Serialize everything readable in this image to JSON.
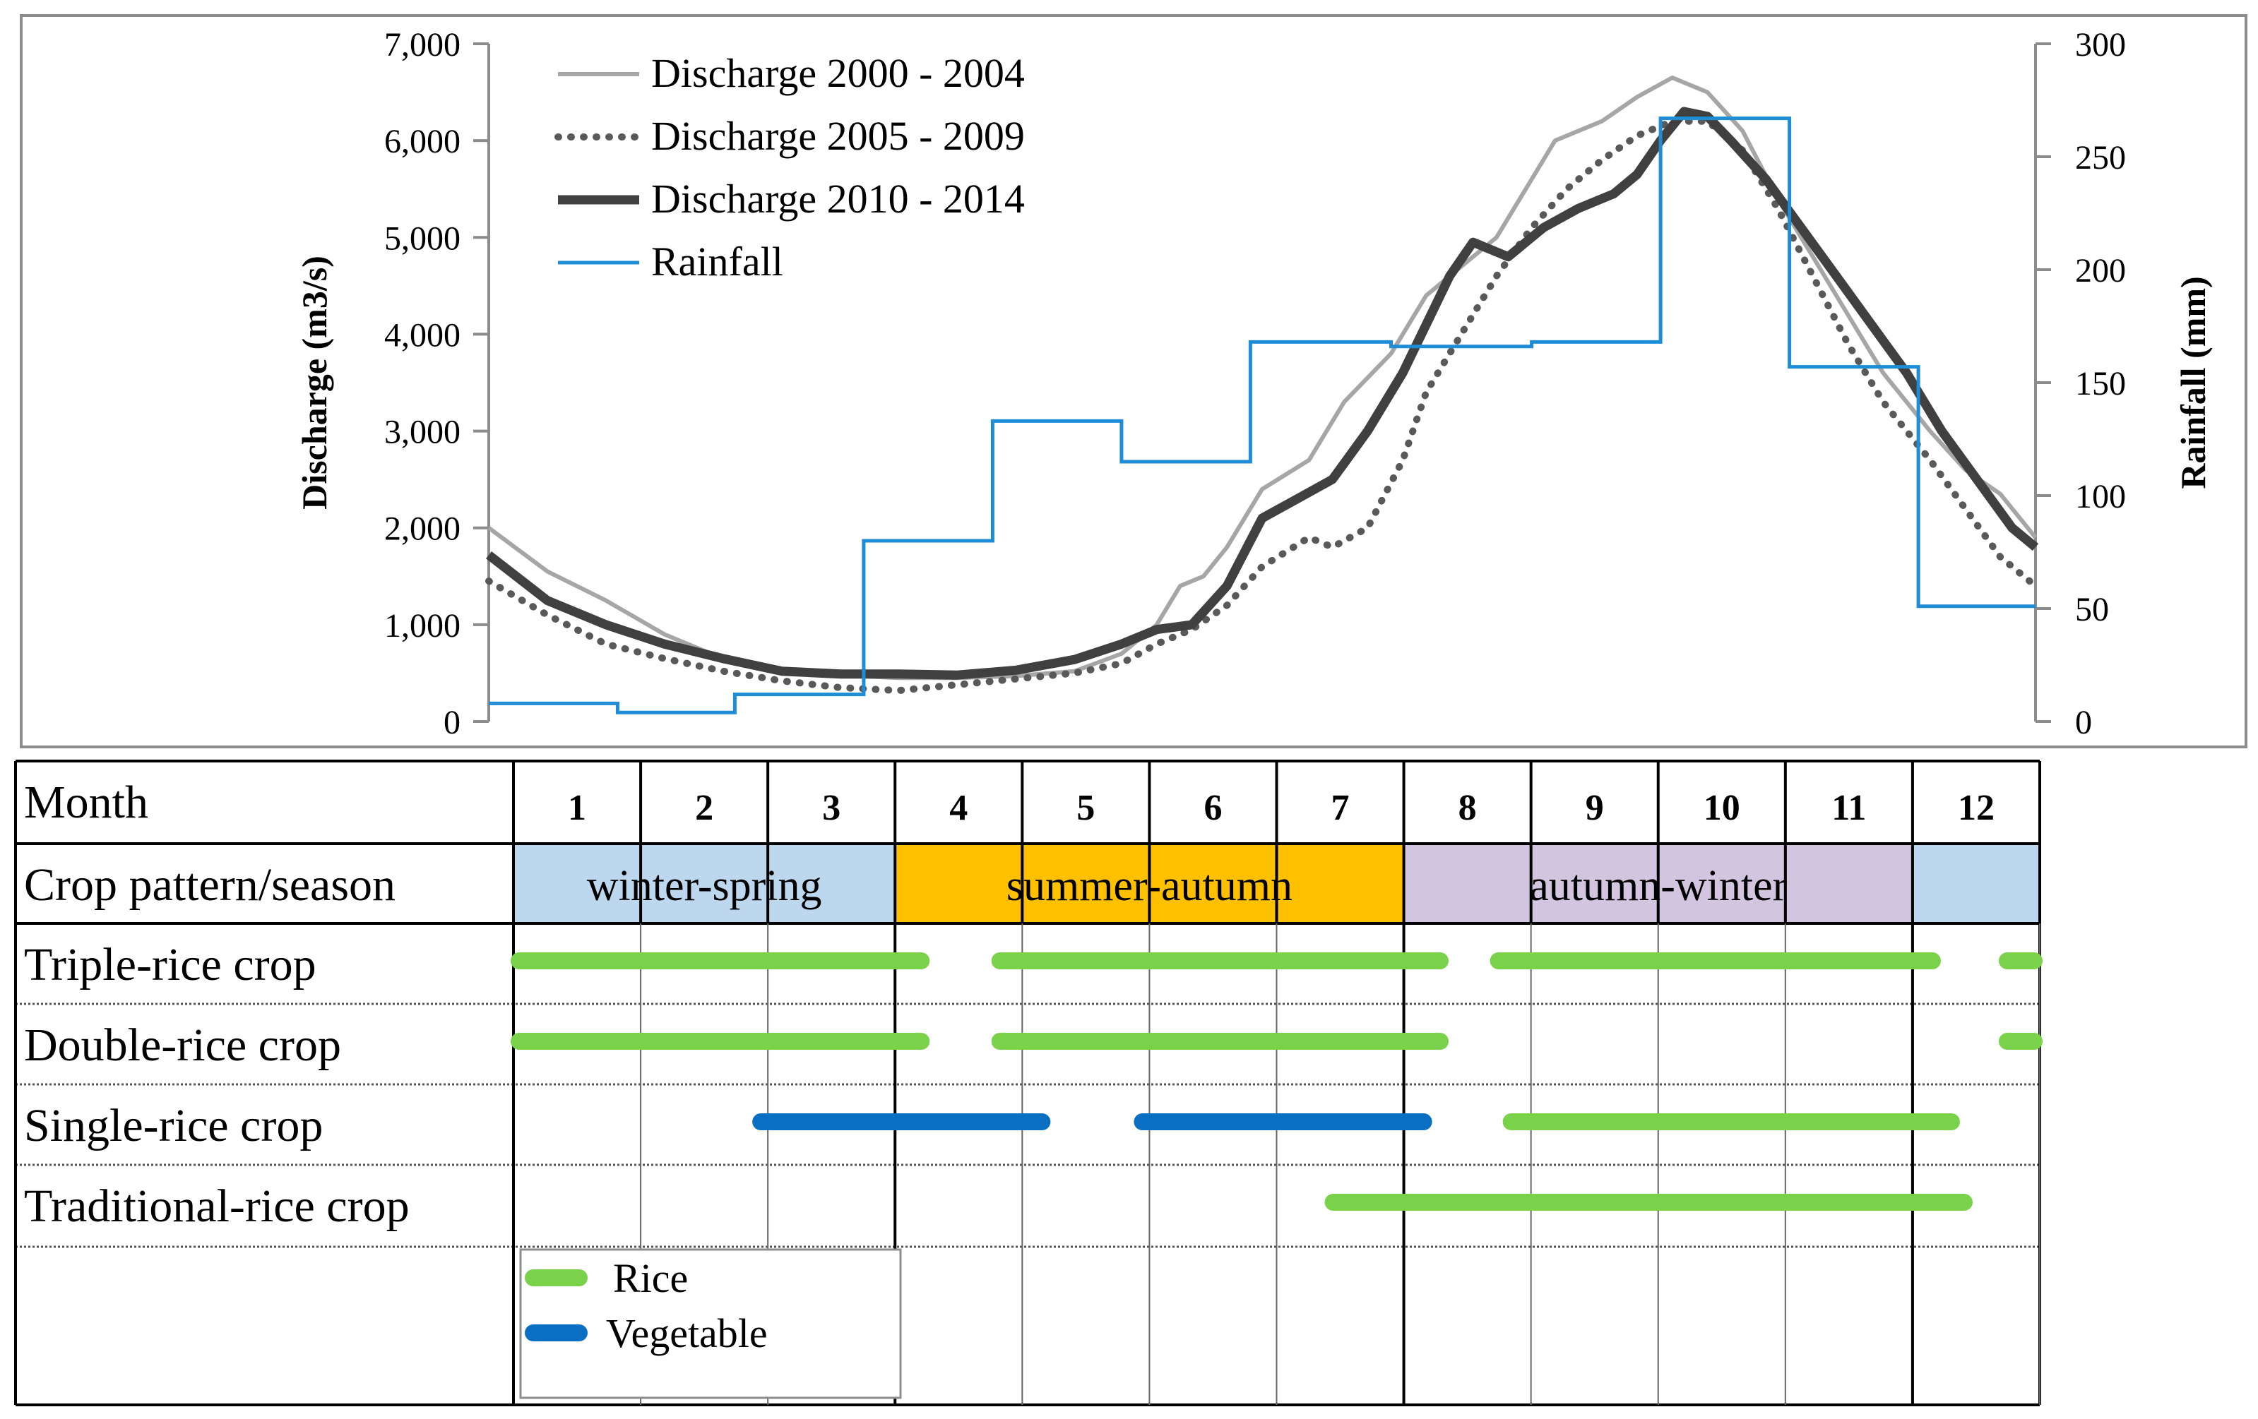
{
  "chart_data": {
    "type": "line",
    "x_unit_note": "",
    "ylabel": "Discharge (m3/s)",
    "y2label": "Rainfall (mm)",
    "ylim": [
      0,
      7000
    ],
    "y2lim": [
      0,
      300
    ],
    "yticks": [
      "0",
      "1,000",
      "2,000",
      "3,000",
      "4,000",
      "5,000",
      "6,000",
      "7,000"
    ],
    "y2ticks": [
      "0",
      "50",
      "100",
      "150",
      "200",
      "250",
      "300"
    ],
    "legend_position": "top-left",
    "series": [
      {
        "name": "Discharge 2000 - 2004",
        "color": "#a6a6a6",
        "style": "solid-thin",
        "points": [
          [
            0,
            2000
          ],
          [
            0.5,
            1550
          ],
          [
            1,
            1250
          ],
          [
            1.5,
            900
          ],
          [
            2,
            650
          ],
          [
            2.5,
            520
          ],
          [
            3,
            480
          ],
          [
            3.5,
            450
          ],
          [
            4,
            450
          ],
          [
            4.5,
            470
          ],
          [
            5,
            520
          ],
          [
            5.4,
            700
          ],
          [
            5.7,
            1000
          ],
          [
            5.9,
            1400
          ],
          [
            6.1,
            1500
          ],
          [
            6.3,
            1800
          ],
          [
            6.6,
            2400
          ],
          [
            7,
            2700
          ],
          [
            7.3,
            3300
          ],
          [
            7.7,
            3800
          ],
          [
            8,
            4400
          ],
          [
            8.3,
            4700
          ],
          [
            8.6,
            5000
          ],
          [
            8.9,
            5600
          ],
          [
            9.1,
            6000
          ],
          [
            9.5,
            6200
          ],
          [
            9.8,
            6450
          ],
          [
            10.1,
            6650
          ],
          [
            10.4,
            6500
          ],
          [
            10.7,
            6100
          ],
          [
            11,
            5400
          ],
          [
            11.3,
            4800
          ],
          [
            11.6,
            4200
          ],
          [
            11.9,
            3600
          ],
          [
            12.3,
            3000
          ],
          [
            12.6,
            2600
          ],
          [
            12.9,
            2350
          ],
          [
            13.2,
            1900
          ]
        ]
      },
      {
        "name": "Discharge 2005 - 2009",
        "color": "#595959",
        "style": "dotted",
        "points": [
          [
            0,
            1450
          ],
          [
            0.5,
            1100
          ],
          [
            1,
            800
          ],
          [
            1.5,
            650
          ],
          [
            2,
            520
          ],
          [
            2.5,
            420
          ],
          [
            3,
            350
          ],
          [
            3.5,
            320
          ],
          [
            4,
            380
          ],
          [
            4.5,
            440
          ],
          [
            5,
            500
          ],
          [
            5.4,
            600
          ],
          [
            5.7,
            800
          ],
          [
            6,
            950
          ],
          [
            6.3,
            1200
          ],
          [
            6.6,
            1600
          ],
          [
            7,
            1900
          ],
          [
            7.2,
            1800
          ],
          [
            7.5,
            2000
          ],
          [
            7.8,
            2700
          ],
          [
            8,
            3400
          ],
          [
            8.3,
            4000
          ],
          [
            8.6,
            4600
          ],
          [
            8.9,
            5100
          ],
          [
            9.2,
            5500
          ],
          [
            9.5,
            5800
          ],
          [
            9.8,
            6050
          ],
          [
            10.1,
            6200
          ],
          [
            10.4,
            6200
          ],
          [
            10.7,
            5900
          ],
          [
            11,
            5300
          ],
          [
            11.3,
            4600
          ],
          [
            11.6,
            3900
          ],
          [
            11.9,
            3300
          ],
          [
            12.3,
            2700
          ],
          [
            12.6,
            2200
          ],
          [
            12.9,
            1700
          ],
          [
            13.2,
            1400
          ]
        ]
      },
      {
        "name": "Discharge 2010 - 2014",
        "color": "#404040",
        "style": "solid-thick",
        "points": [
          [
            0,
            1720
          ],
          [
            0.5,
            1250
          ],
          [
            1,
            1000
          ],
          [
            1.5,
            800
          ],
          [
            2,
            650
          ],
          [
            2.5,
            520
          ],
          [
            3,
            490
          ],
          [
            3.5,
            490
          ],
          [
            4,
            480
          ],
          [
            4.5,
            530
          ],
          [
            5,
            640
          ],
          [
            5.4,
            800
          ],
          [
            5.7,
            950
          ],
          [
            6,
            1000
          ],
          [
            6.3,
            1400
          ],
          [
            6.6,
            2100
          ],
          [
            6.9,
            2300
          ],
          [
            7.2,
            2500
          ],
          [
            7.5,
            3000
          ],
          [
            7.8,
            3600
          ],
          [
            8,
            4100
          ],
          [
            8.2,
            4600
          ],
          [
            8.4,
            4950
          ],
          [
            8.7,
            4800
          ],
          [
            9,
            5100
          ],
          [
            9.3,
            5300
          ],
          [
            9.6,
            5450
          ],
          [
            9.8,
            5650
          ],
          [
            10,
            6000
          ],
          [
            10.2,
            6300
          ],
          [
            10.4,
            6250
          ],
          [
            10.6,
            6000
          ],
          [
            10.9,
            5600
          ],
          [
            11.2,
            5100
          ],
          [
            11.5,
            4600
          ],
          [
            11.8,
            4100
          ],
          [
            12.1,
            3600
          ],
          [
            12.4,
            3000
          ],
          [
            12.7,
            2500
          ],
          [
            13,
            2000
          ],
          [
            13.2,
            1800
          ]
        ]
      },
      {
        "name": "Rainfall",
        "color": "#1f8dd6",
        "style": "step",
        "axis": "y2",
        "steps": [
          [
            0,
            1.1,
            8
          ],
          [
            1.1,
            2.1,
            4
          ],
          [
            2.1,
            3.2,
            12
          ],
          [
            3.2,
            4.3,
            80
          ],
          [
            4.3,
            5.4,
            133
          ],
          [
            5.4,
            6.5,
            115
          ],
          [
            6.5,
            7.7,
            168
          ],
          [
            7.7,
            8.9,
            166
          ],
          [
            8.9,
            10,
            168
          ],
          [
            10,
            11.1,
            267
          ],
          [
            11.1,
            12.2,
            157
          ],
          [
            12.2,
            13.2,
            51
          ]
        ]
      }
    ]
  },
  "calendar": {
    "row_labels": [
      "Month",
      "Crop pattern/season",
      "Triple-rice crop",
      "Double-rice crop",
      "Single-rice crop",
      "Traditional-rice crop",
      ""
    ],
    "months": [
      "1",
      "2",
      "3",
      "4",
      "5",
      "6",
      "7",
      "8",
      "9",
      "10",
      "11",
      "12"
    ],
    "seasons": [
      {
        "label": "winter-spring",
        "start": 0,
        "end": 3,
        "color": "#bdd7ee"
      },
      {
        "label": "summer-autumn",
        "start": 3,
        "end": 7,
        "color": "#ffc000"
      },
      {
        "label": "autumn-winter",
        "start": 7,
        "end": 11,
        "color": "#d2c5e0"
      },
      {
        "label": "",
        "start": 11,
        "end": 12,
        "color": "#bdd7ee"
      }
    ],
    "crops": [
      {
        "row": 2,
        "type": "rice",
        "start": 0.0,
        "end": 3.25
      },
      {
        "row": 2,
        "type": "rice",
        "start": 3.78,
        "end": 7.33
      },
      {
        "row": 2,
        "type": "rice",
        "start": 7.7,
        "end": 11.2
      },
      {
        "row": 2,
        "type": "rice",
        "start": 11.7,
        "end": 12.0
      },
      {
        "row": 3,
        "type": "rice",
        "start": 0.0,
        "end": 3.25
      },
      {
        "row": 3,
        "type": "rice",
        "start": 3.78,
        "end": 7.33
      },
      {
        "row": 3,
        "type": "rice",
        "start": 11.7,
        "end": 12.0
      },
      {
        "row": 4,
        "type": "vegetable",
        "start": 1.9,
        "end": 4.2
      },
      {
        "row": 4,
        "type": "vegetable",
        "start": 4.9,
        "end": 7.2
      },
      {
        "row": 4,
        "type": "rice",
        "start": 7.8,
        "end": 11.35
      },
      {
        "row": 5,
        "type": "rice",
        "start": 6.4,
        "end": 11.45
      }
    ],
    "legend": [
      {
        "label": "Rice",
        "color": "#7ad14a"
      },
      {
        "label": "Vegetable",
        "color": "#0a6ec2"
      }
    ]
  }
}
